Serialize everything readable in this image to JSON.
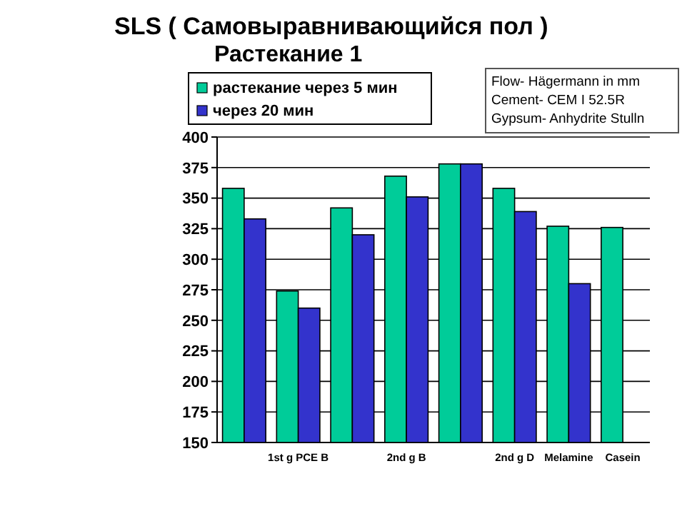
{
  "chart_data": {
    "type": "bar",
    "title": "SLS ( Самовыравнивающийся пол )",
    "subtitle": "Растекание 1",
    "categories": [
      null,
      "1st g PCE B",
      null,
      "2nd g B",
      null,
      "2nd g D",
      "Melamine",
      "Casein"
    ],
    "series": [
      {
        "name": "растекание через 5 мин",
        "color": "#00cc99",
        "values": [
          358,
          274,
          342,
          368,
          378,
          358,
          327,
          326
        ]
      },
      {
        "name": "через 20 мин",
        "color": "#3333cc",
        "values": [
          333,
          260,
          320,
          351,
          378,
          339,
          280,
          null
        ]
      }
    ],
    "ylim": [
      150,
      400
    ],
    "yticks": [
      150,
      175,
      200,
      225,
      250,
      275,
      300,
      325,
      350,
      375,
      400
    ],
    "grid": "y",
    "legend": "top left",
    "annotations": [
      "Flow- Hägermann in mm\nCement- CEM I 52.5R\nGypsum- Anhydrite Stulln"
    ]
  }
}
